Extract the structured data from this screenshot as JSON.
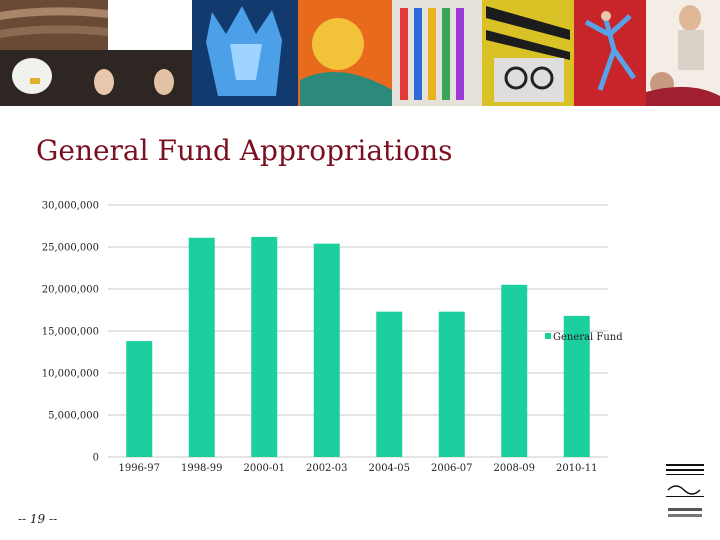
{
  "slide": {
    "title": "General Fund Appropriations",
    "page_label": "-- 19 --"
  },
  "colors": {
    "series": "#1ccf9e",
    "title": "#7a1020",
    "gridline": "#c8c8c8"
  },
  "banner": {
    "panels": [
      "carved-wood-photo",
      "eagle-and-dancers-photo",
      "blue-glass-sculpture-photo",
      "colorful-painting-photo",
      "colored-cables-photo",
      "zebra-and-face-artwork-photo",
      "dancer-on-red-photo",
      "theater-actors-photo"
    ]
  },
  "chart_data": {
    "type": "bar",
    "categories": [
      "1996-97",
      "1998-99",
      "2000-01",
      "2002-03",
      "2004-05",
      "2006-07",
      "2008-09",
      "2010-11"
    ],
    "series": [
      {
        "name": "General Fund",
        "values": [
          13800000,
          26100000,
          26200000,
          25400000,
          17300000,
          17300000,
          20500000,
          16800000
        ]
      }
    ],
    "ylim": [
      0,
      30000000
    ],
    "yticks": [
      "0",
      "5,000,000",
      "10,000,000",
      "15,000,000",
      "20,000,000",
      "25,000,000",
      "30,000,000"
    ],
    "ytick_values": [
      0,
      5000000,
      10000000,
      15000000,
      20000000,
      25000000,
      30000000
    ],
    "grid": true,
    "legend": "right"
  }
}
